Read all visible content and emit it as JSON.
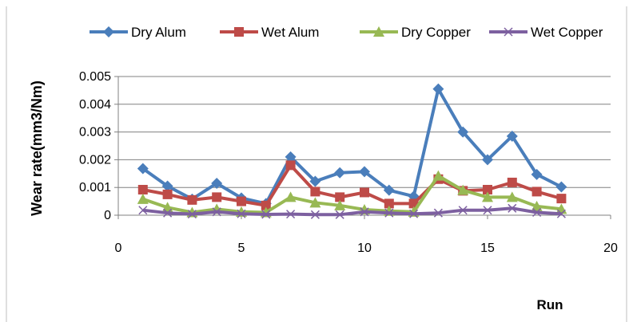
{
  "chart_data": {
    "type": "line",
    "title": "",
    "xlabel": "Run",
    "ylabel": "Wear rate(mm3/Nm)",
    "xlim": [
      0,
      20
    ],
    "ylim": [
      0,
      0.005
    ],
    "x_ticks": [
      "0",
      "5",
      "10",
      "15",
      "20"
    ],
    "y_ticks": [
      "0",
      "0.001",
      "0.002",
      "0.003",
      "0.004",
      "0.005"
    ],
    "grid": "horizontal major gridlines",
    "legend_position": "top",
    "x": [
      1,
      2,
      3,
      4,
      5,
      6,
      7,
      8,
      9,
      10,
      11,
      12,
      13,
      14,
      15,
      16,
      17,
      18
    ],
    "series": [
      {
        "name": "Dry Alum",
        "color": "#4a7ebb",
        "marker": "diamond",
        "values": [
          0.00168,
          0.00105,
          0.00058,
          0.00115,
          0.00062,
          0.00042,
          0.0021,
          0.00122,
          0.00153,
          0.00157,
          0.0009,
          0.00068,
          0.00455,
          0.003,
          0.002,
          0.00285,
          0.00147,
          0.00102
        ]
      },
      {
        "name": "Wet Alum",
        "color": "#be4b48",
        "marker": "square",
        "values": [
          0.00092,
          0.00075,
          0.00055,
          0.00065,
          0.0005,
          0.00035,
          0.0018,
          0.00085,
          0.00065,
          0.00082,
          0.00042,
          0.00042,
          0.0013,
          0.00088,
          0.00092,
          0.00118,
          0.00085,
          0.0006
        ]
      },
      {
        "name": "Dry Copper",
        "color": "#98b954",
        "marker": "triangle",
        "values": [
          0.00058,
          0.00028,
          0.0001,
          0.00022,
          0.00012,
          0.0001,
          0.00065,
          0.00045,
          0.00035,
          0.0002,
          0.00015,
          0.00012,
          0.00142,
          0.0009,
          0.00065,
          0.00065,
          0.00032,
          0.00022
        ]
      },
      {
        "name": "Wet Copper",
        "color": "#7d60a0",
        "marker": "x",
        "values": [
          0.00018,
          8e-05,
          4e-05,
          0.00012,
          5e-05,
          3e-05,
          4e-05,
          2e-05,
          2e-05,
          0.00012,
          8e-05,
          5e-05,
          8e-05,
          0.00018,
          0.00018,
          0.00025,
          0.0001,
          5e-05
        ]
      }
    ]
  }
}
